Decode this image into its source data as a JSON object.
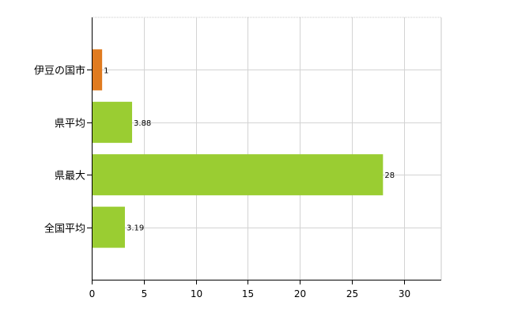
{
  "chart_data": {
    "type": "bar",
    "orientation": "horizontal",
    "categories": [
      "伊豆の国市",
      "県平均",
      "県最大",
      "全国平均"
    ],
    "values": [
      1,
      3.88,
      28,
      3.19
    ],
    "data_labels": [
      "1",
      "3.88",
      "28",
      "3.19"
    ],
    "bar_colors": [
      "#e07b20",
      "#9acd32",
      "#9acd32",
      "#9acd32"
    ],
    "xlim": [
      0,
      33.6
    ],
    "x_ticks": [
      0,
      5,
      10,
      15,
      20,
      25,
      30
    ],
    "x_tick_labels": [
      "0",
      "5",
      "10",
      "15",
      "20",
      "25",
      "30"
    ],
    "grid": true,
    "title": "",
    "xlabel": "",
    "ylabel": ""
  }
}
